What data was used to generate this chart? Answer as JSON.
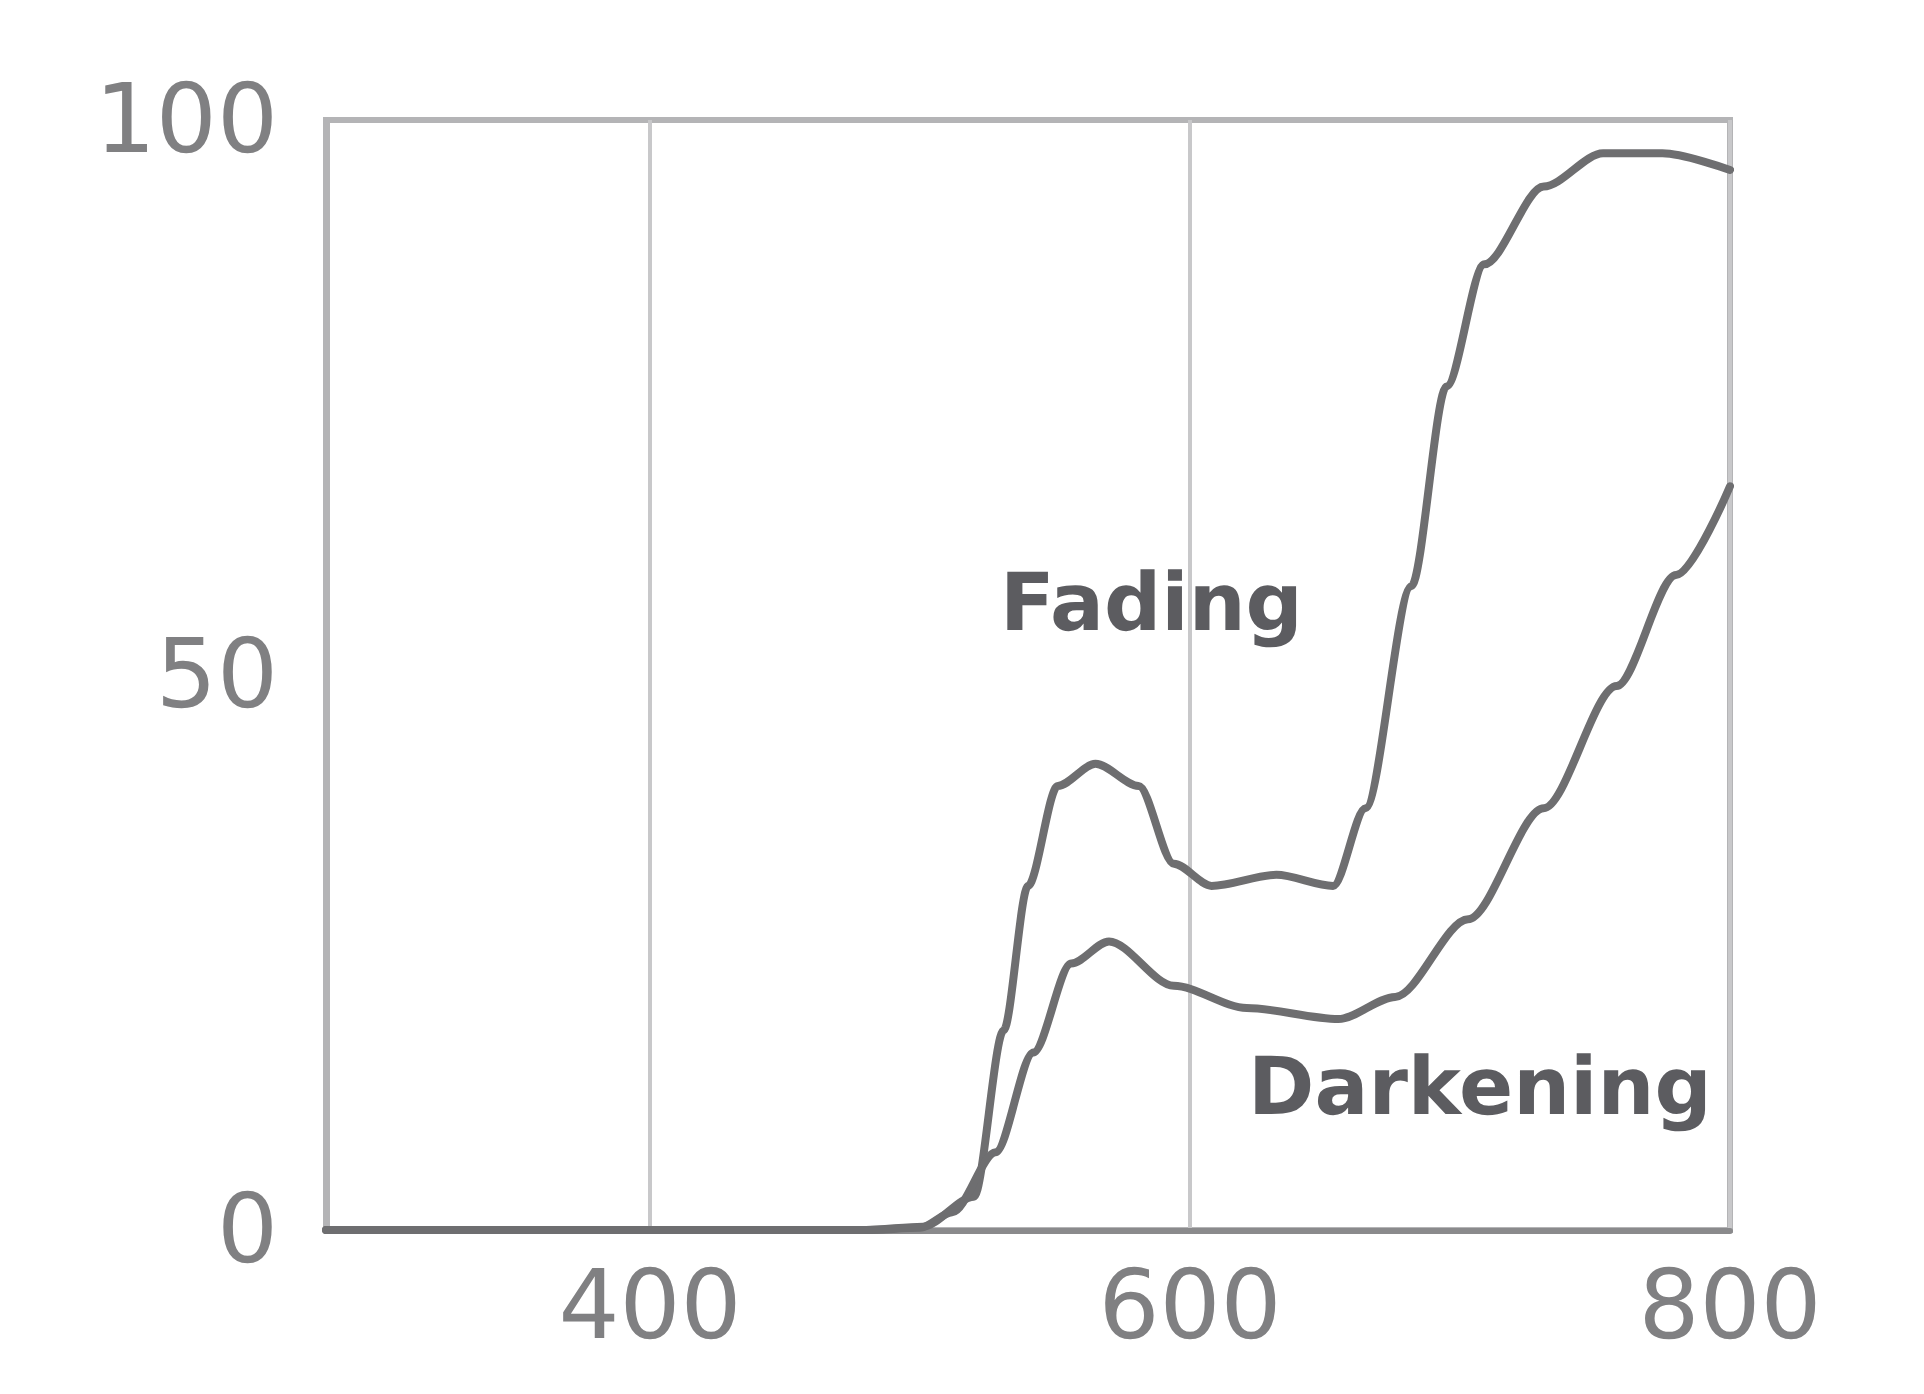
{
  "chart_data": {
    "type": "line",
    "xlim": [
      280,
      800
    ],
    "xticks": [
      400,
      600,
      800
    ],
    "ylim": [
      0,
      100
    ],
    "yticks": [
      0,
      50,
      100
    ],
    "grid": "x",
    "marker": "none",
    "line_style": "solid",
    "series": [
      {
        "name": "Fading",
        "color": "#6e6e70",
        "x": [
          280,
          400,
          480,
          501,
          520,
          531,
          540,
          551,
          565,
          581,
          594,
          608,
          632,
          653,
          665,
          682,
          695,
          709,
          731,
          753,
          775,
          800
        ],
        "values": [
          0,
          0,
          0,
          0.3,
          3,
          18,
          31,
          40,
          42,
          40,
          33,
          31,
          32,
          31,
          38,
          58,
          76,
          87,
          94,
          97,
          97,
          95.5
        ]
      },
      {
        "name": "Darkening",
        "color": "#6e6e70",
        "x": [
          280,
          400,
          480,
          500,
          512,
          528,
          542,
          556,
          570,
          594,
          621,
          655,
          676,
          703,
          731,
          758,
          780,
          800
        ],
        "values": [
          0,
          0,
          0,
          0.2,
          1.6,
          7,
          16,
          24,
          26,
          22,
          20,
          19,
          21,
          28,
          38,
          49,
          59,
          67
        ]
      }
    ]
  }
}
